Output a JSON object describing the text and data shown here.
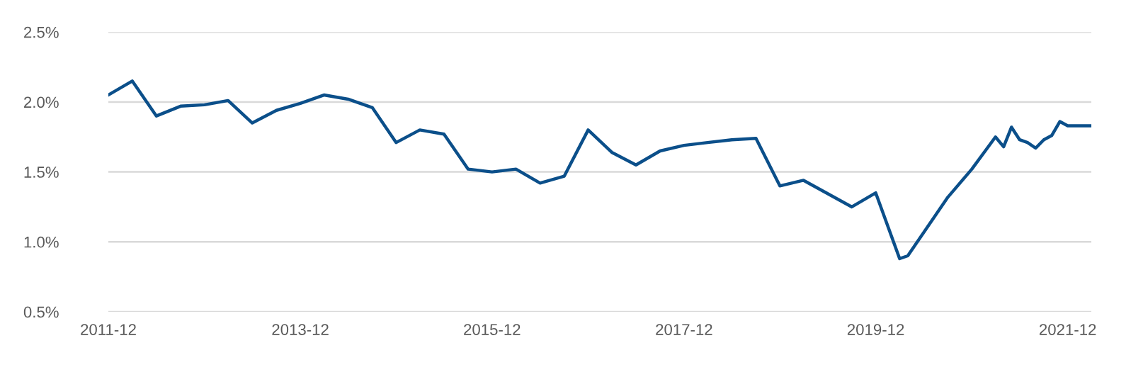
{
  "chart_data": {
    "type": "line",
    "x": [
      "2011-12",
      "2012-03",
      "2012-06",
      "2012-09",
      "2012-12",
      "2013-03",
      "2013-06",
      "2013-09",
      "2013-12",
      "2014-03",
      "2014-06",
      "2014-09",
      "2014-12",
      "2015-03",
      "2015-06",
      "2015-09",
      "2015-12",
      "2016-03",
      "2016-06",
      "2016-09",
      "2016-12",
      "2017-03",
      "2017-06",
      "2017-09",
      "2017-12",
      "2018-03",
      "2018-06",
      "2018-09",
      "2018-12",
      "2019-03",
      "2019-09",
      "2019-12",
      "2020-03",
      "2020-04",
      "2020-09",
      "2020-12",
      "2021-03",
      "2021-04",
      "2021-05",
      "2021-06",
      "2021-07",
      "2021-08",
      "2021-09",
      "2021-10",
      "2021-11",
      "2021-12",
      "2022-03"
    ],
    "series": [
      {
        "color": "#0b4f8a",
        "values": [
          2.05,
          2.15,
          1.9,
          1.97,
          1.98,
          2.01,
          1.85,
          1.94,
          1.99,
          2.05,
          2.02,
          1.96,
          1.71,
          1.8,
          1.77,
          1.52,
          1.5,
          1.52,
          1.42,
          1.47,
          1.8,
          1.64,
          1.55,
          1.65,
          1.69,
          1.71,
          1.73,
          1.74,
          1.4,
          1.44,
          1.25,
          1.35,
          0.88,
          0.9,
          1.32,
          1.52,
          1.75,
          1.68,
          1.82,
          1.73,
          1.71,
          1.67,
          1.73,
          1.76,
          1.86,
          1.83,
          1.83
        ]
      }
    ],
    "xlim": [
      "2011-12",
      "2022-03"
    ],
    "xticks": [
      "2011-12",
      "2013-12",
      "2015-12",
      "2017-12",
      "2019-12",
      "2021-12"
    ],
    "ylim": [
      0.5,
      2.5
    ],
    "yticks": [
      {
        "value": 0.5,
        "label": "0.5%"
      },
      {
        "value": 1.0,
        "label": "1.0%"
      },
      {
        "value": 1.5,
        "label": "1.5%"
      },
      {
        "value": 2.0,
        "label": "2.0%"
      },
      {
        "value": 2.5,
        "label": "2.5%"
      }
    ],
    "grid": "y",
    "marker": "none",
    "line_style": "solid",
    "legend": false
  }
}
